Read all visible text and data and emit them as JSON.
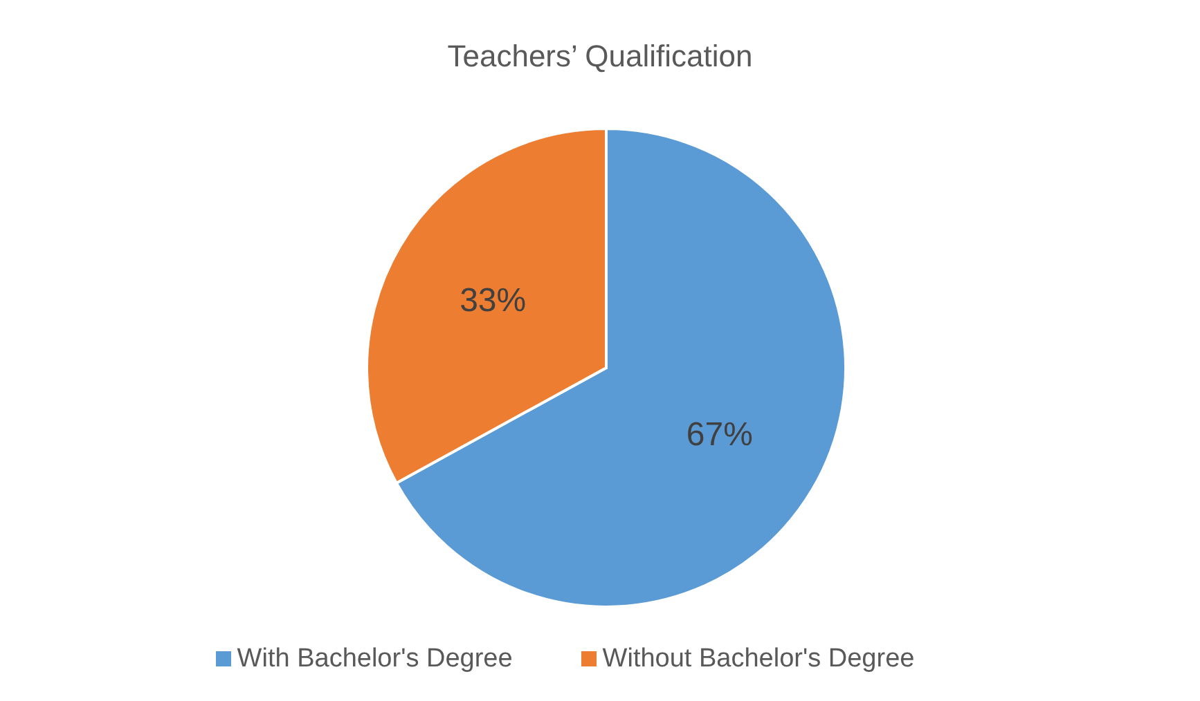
{
  "chart_data": {
    "type": "pie",
    "title": "Teachers’ Qualification",
    "categories": [
      "With Bachelor's Degree",
      "Without Bachelor's Degree"
    ],
    "values": [
      67,
      33
    ],
    "colors": [
      "#5b9bd5",
      "#ed7d31"
    ],
    "value_labels": [
      "67%",
      "33%"
    ],
    "legend": "bottom"
  }
}
